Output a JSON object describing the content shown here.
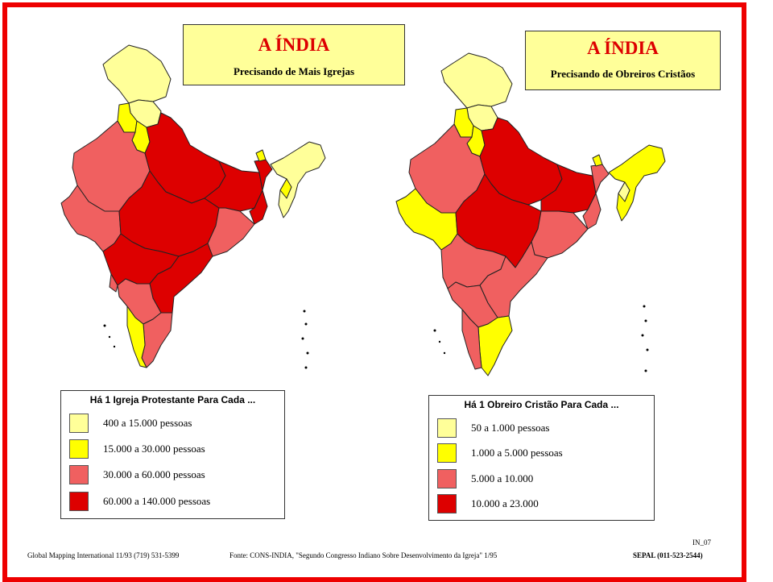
{
  "colors": {
    "frame": "#ee0000",
    "title_bg": "#ffff99",
    "title_text": "#dd0000",
    "pale_yellow": "#ffff99",
    "yellow": "#ffff00",
    "salmon": "#f06060",
    "red": "#dd0000"
  },
  "left_panel": {
    "title": "A ÍNDIA",
    "subtitle": "Precisando de Mais Igrejas",
    "legend": {
      "title": "Há 1 Igreja Protestante Para Cada ...",
      "items": [
        {
          "label": "400 a 15.000 pessoas",
          "color": "#ffff99"
        },
        {
          "label": "15.000 a 30.000 pessoas",
          "color": "#ffff00"
        },
        {
          "label": "30.000 a 60.000 pessoas",
          "color": "#f06060"
        },
        {
          "label": "60.000 a 140.000 pessoas",
          "color": "#dd0000"
        }
      ]
    }
  },
  "right_panel": {
    "title": "A ÍNDIA",
    "subtitle": "Precisando de Obreiros Cristãos",
    "legend": {
      "title": "Há 1 Obreiro Cristão Para Cada ...",
      "items": [
        {
          "label": "50 a 1.000 pessoas",
          "color": "#ffff99"
        },
        {
          "label": "1.000 a 5.000 pessoas",
          "color": "#ffff00"
        },
        {
          "label": "5.000 a 10.000",
          "color": "#f06060"
        },
        {
          "label": "10.000 a 23.000",
          "color": "#dd0000"
        }
      ]
    }
  },
  "footer": {
    "credit": "Global Mapping International  11/93  (719) 531-5399",
    "source": "Fonte: CONS-INDIA, \"Segundo Congresso Indiano Sobre Desenvolvimento da Igreja\"  1/95",
    "code": "IN_07",
    "publisher": "SEPAL (011-523-2544)"
  }
}
